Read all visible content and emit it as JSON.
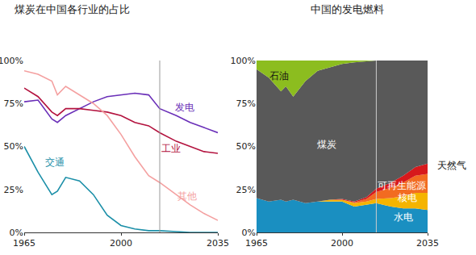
{
  "chart_data": [
    {
      "type": "line",
      "title": "煤炭在中国各行业的占比",
      "x": [
        1965,
        1970,
        1975,
        1977,
        1980,
        1985,
        1990,
        1995,
        2000,
        2005,
        2010,
        2014,
        2020,
        2025,
        2030,
        2035
      ],
      "series": [
        {
          "name": "发电",
          "color": "#6a2fb8",
          "values": [
            76,
            77,
            66,
            64,
            68,
            72,
            76,
            79,
            80,
            81,
            80,
            72,
            68,
            64,
            61,
            58
          ]
        },
        {
          "name": "工业",
          "color": "#b3123e",
          "values": [
            84,
            79,
            70,
            68,
            72,
            72,
            71,
            70,
            68,
            64,
            62,
            58,
            53,
            50,
            47,
            46
          ]
        },
        {
          "name": "其他",
          "color": "#f4a0a0",
          "values": [
            94,
            92,
            88,
            80,
            85,
            80,
            75,
            68,
            57,
            44,
            33,
            29,
            22,
            16,
            11,
            7
          ]
        },
        {
          "name": "交通",
          "color": "#1b8fa8",
          "values": [
            50,
            35,
            22,
            24,
            32,
            30,
            22,
            10,
            4,
            2,
            1,
            1,
            0.5,
            0,
            0,
            0
          ]
        }
      ],
      "xlim": [
        1965,
        2035
      ],
      "xticks": [
        1965,
        2000,
        2035
      ],
      "ylim": [
        0,
        100
      ],
      "yticks": [
        {
          "value": 0,
          "label": "0%"
        },
        {
          "value": 25,
          "label": "25%"
        },
        {
          "value": 50,
          "label": "50%"
        },
        {
          "value": 75,
          "label": "75%"
        },
        {
          "value": 100,
          "label": "100%"
        }
      ],
      "divider_x": 2014,
      "grid": false
    },
    {
      "type": "area",
      "title": "中国的发电燃料",
      "x": [
        1965,
        1970,
        1975,
        1977,
        1980,
        1985,
        1990,
        1995,
        2000,
        2005,
        2010,
        2014,
        2020,
        2025,
        2030,
        2035
      ],
      "series": [
        {
          "name": "水电",
          "color": "#1a8fc1",
          "values": [
            20,
            18,
            19,
            18,
            19,
            17,
            18,
            18,
            18,
            15,
            16,
            17,
            15,
            14,
            14,
            13
          ]
        },
        {
          "name": "核电",
          "color": "#f5b400",
          "values": [
            0,
            0,
            0,
            0,
            0,
            0,
            0,
            1,
            1,
            2,
            2,
            2.5,
            5,
            7,
            9,
            10
          ]
        },
        {
          "name": "可再生能源",
          "color": "#f26b21",
          "values": [
            0,
            0,
            0,
            0,
            0,
            0,
            0,
            0,
            0,
            0.5,
            1.5,
            4,
            6,
            8,
            10,
            11
          ]
        },
        {
          "name": "天然气",
          "color": "#d7191c",
          "values": [
            0,
            0,
            0,
            0,
            0,
            0,
            0,
            0,
            0.5,
            0.5,
            1,
            2,
            3,
            4,
            5,
            6
          ]
        },
        {
          "name": "煤炭",
          "color": "#595959",
          "values": [
            75,
            72,
            63,
            67,
            60,
            71,
            76,
            77,
            78.5,
            81,
            79,
            74.5,
            71,
            67,
            62,
            60
          ]
        },
        {
          "name": "石油",
          "color": "#8cbd1f",
          "values": [
            5,
            10,
            18,
            15,
            21,
            12,
            6,
            4,
            2,
            1,
            0.5,
            0,
            0,
            0,
            0,
            0
          ]
        }
      ],
      "xlim": [
        1965,
        2035
      ],
      "xticks": [
        1965,
        2000,
        2035
      ],
      "ylim": [
        0,
        100
      ],
      "yticks": [
        {
          "value": 0,
          "label": "0%"
        },
        {
          "value": 25,
          "label": "25%"
        },
        {
          "value": 50,
          "label": "50%"
        },
        {
          "value": 75,
          "label": "75%"
        },
        {
          "value": 100,
          "label": "100%"
        }
      ],
      "stacked": true,
      "divider_x": 2014,
      "grid": false
    }
  ]
}
